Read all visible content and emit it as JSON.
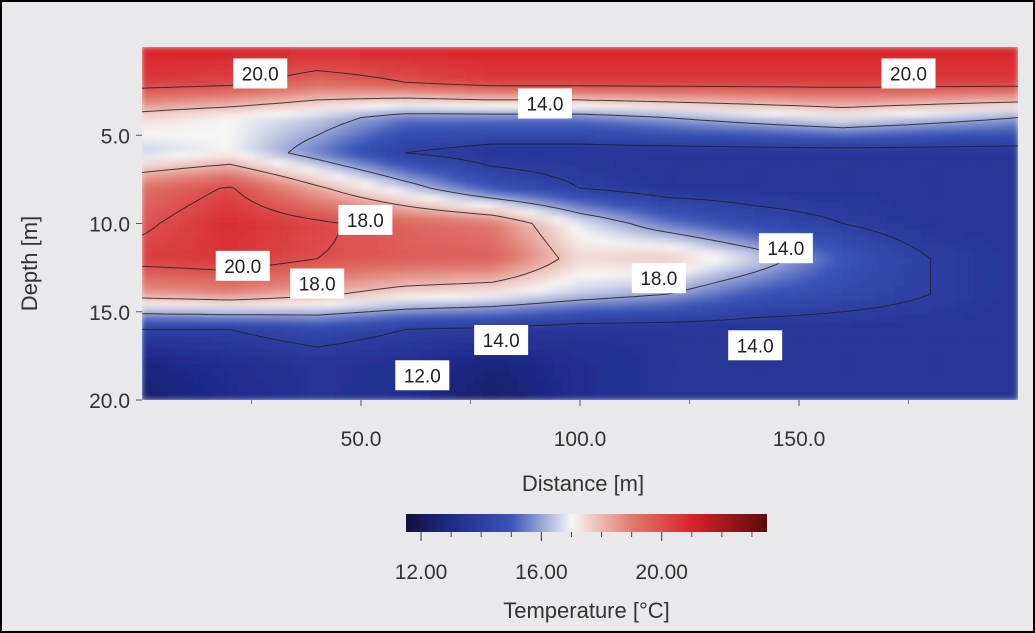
{
  "chart_data": {
    "type": "heatmap",
    "subtype": "contour",
    "xlabel": "Distance [m]",
    "ylabel": "Depth [m]",
    "xlim": [
      0,
      200
    ],
    "ylim": [
      0,
      20
    ],
    "y_inverted": true,
    "x_ticks": [
      50,
      100,
      150
    ],
    "x_tick_labels": [
      "50.0",
      "100.0",
      "150.0"
    ],
    "y_ticks": [
      5,
      10,
      15,
      20
    ],
    "y_tick_labels": [
      "5.0",
      "10.0",
      "15.0",
      "20.0"
    ],
    "colorbar": {
      "title": "Temperature [°C]",
      "range": [
        11.5,
        23.5
      ],
      "ticks": [
        12,
        16,
        20
      ],
      "tick_labels": [
        "12.00",
        "16.00",
        "20.00"
      ],
      "minor_ticks": [
        13,
        14,
        15,
        17,
        18,
        19,
        21,
        22,
        23
      ],
      "colors": [
        "#14103a",
        "#1f2a8a",
        "#3a54b8",
        "#f6f6f4",
        "#e07a6e",
        "#d8232a",
        "#5a0c0c"
      ],
      "color_stops": [
        11.5,
        13.0,
        15.0,
        17.0,
        19.0,
        21.0,
        23.5
      ]
    },
    "contour_labels": [
      {
        "text": "20.0",
        "x": 27,
        "y": 1.5
      },
      {
        "text": "20.0",
        "x": 175,
        "y": 1.5
      },
      {
        "text": "14.0",
        "x": 92,
        "y": 3.2
      },
      {
        "text": "18.0",
        "x": 51,
        "y": 9.8
      },
      {
        "text": "20.0",
        "x": 23,
        "y": 12.4
      },
      {
        "text": "14.0",
        "x": 147,
        "y": 11.4
      },
      {
        "text": "18.0",
        "x": 118,
        "y": 13.1
      },
      {
        "text": "18.0",
        "x": 40,
        "y": 13.4
      },
      {
        "text": "14.0",
        "x": 82,
        "y": 16.6
      },
      {
        "text": "14.0",
        "x": 140,
        "y": 16.9
      },
      {
        "text": "12.0",
        "x": 64,
        "y": 18.6
      }
    ],
    "temperature_field": {
      "x": [
        0,
        20,
        40,
        60,
        80,
        100,
        120,
        140,
        160,
        180,
        200
      ],
      "depth": [
        0,
        2,
        4,
        6,
        8,
        10,
        12,
        14,
        16,
        18,
        20
      ],
      "values": [
        [
          21,
          21,
          21,
          21,
          21,
          21,
          21,
          21,
          21,
          21,
          21
        ],
        [
          20.5,
          20.3,
          19.5,
          20,
          20.5,
          20.5,
          20.5,
          20.5,
          20.5,
          20.5,
          20.5
        ],
        [
          17.5,
          17,
          16.5,
          15.5,
          15.5,
          15.5,
          16,
          16.5,
          17,
          16.5,
          16
        ],
        [
          16.5,
          17,
          15.5,
          14,
          13.5,
          13.5,
          13.5,
          13.5,
          13.5,
          13.5,
          13.5
        ],
        [
          19.2,
          20.1,
          18.2,
          16.5,
          14.8,
          14,
          13.5,
          13.5,
          13.5,
          13.5,
          13.5
        ],
        [
          19.8,
          20.8,
          20.2,
          19.5,
          19,
          16.8,
          15.4,
          14.5,
          14,
          13.5,
          13.5
        ],
        [
          20.4,
          20.6,
          20,
          19.7,
          19.6,
          17.5,
          17.8,
          16.6,
          15,
          14,
          13.5
        ],
        [
          18.5,
          18.8,
          18.2,
          17.5,
          17.2,
          16.5,
          16,
          15,
          14.5,
          14,
          13.5
        ],
        [
          14,
          14,
          14.5,
          14,
          13.8,
          13.5,
          13.5,
          13.5,
          13.5,
          13.5,
          13.5
        ],
        [
          12.8,
          13.2,
          13.5,
          13.3,
          12.7,
          13.2,
          13.5,
          13.5,
          13.5,
          13.5,
          13.5
        ],
        [
          12.5,
          13,
          13.5,
          13.2,
          12.3,
          13.2,
          13.5,
          13.5,
          13.5,
          13.5,
          13.5
        ]
      ]
    },
    "grid": false
  }
}
